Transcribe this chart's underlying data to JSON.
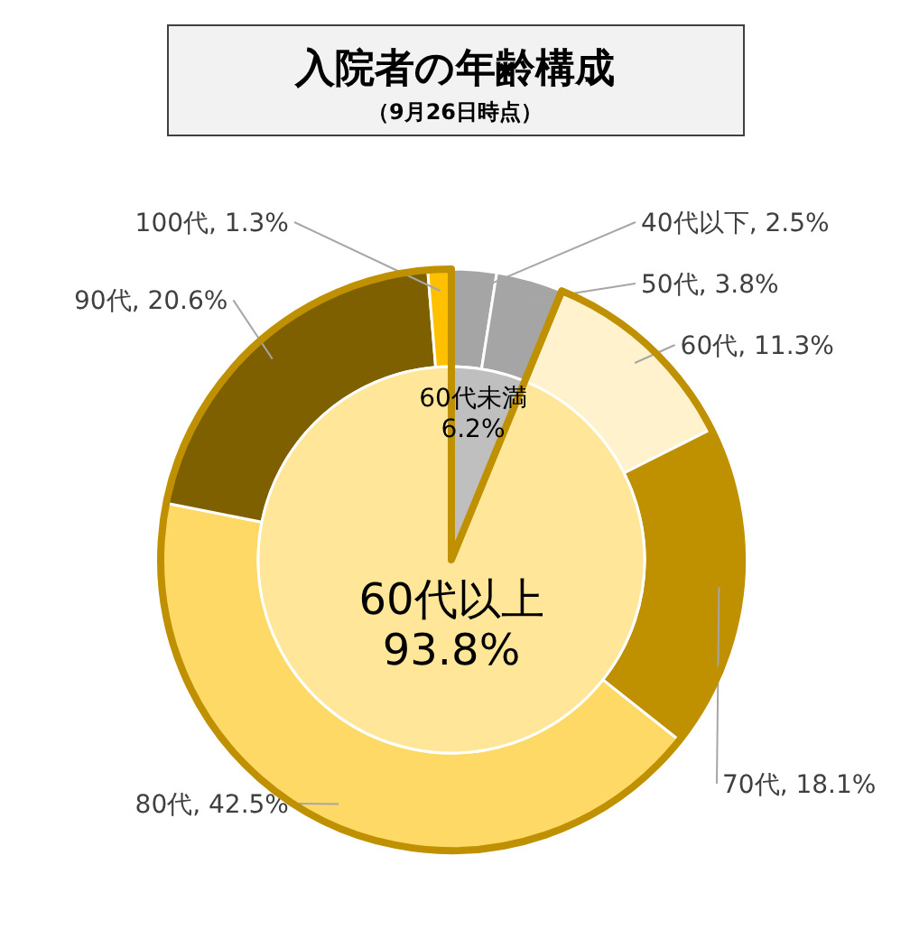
{
  "chart_data": [
    {
      "type": "donut",
      "title": "入院者の年齢構成",
      "subtitle": "（9月26日時点）",
      "categories": [
        "40代以下",
        "50代",
        "60代",
        "70代",
        "80代",
        "90代",
        "100代"
      ],
      "values": [
        2.5,
        3.8,
        11.3,
        18.1,
        42.5,
        20.6,
        1.3
      ],
      "value_labels": [
        "2.5%",
        "3.8%",
        "11.3%",
        "18.1%",
        "42.5%",
        "20.6%",
        "1.3%"
      ],
      "colors": [
        "#a5a5a5",
        "#a5a5a5",
        "#fff2cc",
        "#bf9000",
        "#ffd966",
        "#7f6000",
        "#ffc000"
      ]
    },
    {
      "type": "pie",
      "categories": [
        "60代未満",
        "60代以上"
      ],
      "values": [
        6.2,
        93.8
      ],
      "value_labels": [
        "6.2%",
        "93.8%"
      ],
      "colors": [
        "#bfbfbf",
        "#ffe699"
      ]
    }
  ]
}
